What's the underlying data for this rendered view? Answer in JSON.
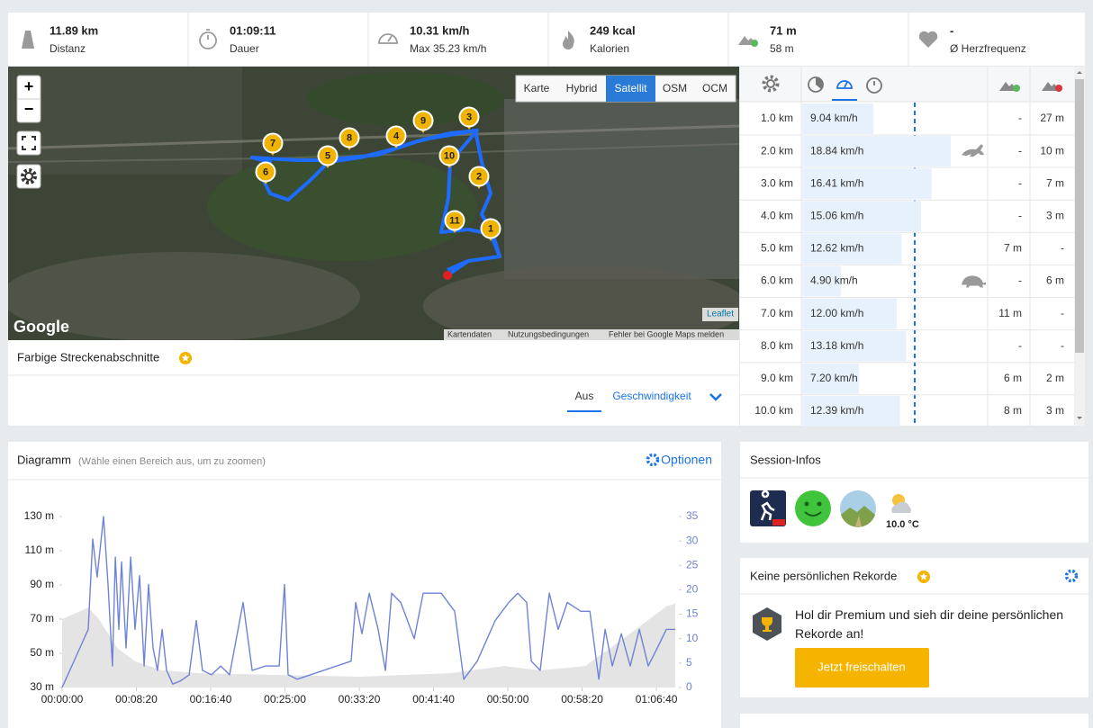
{
  "stats": [
    {
      "value": "11.89 km",
      "label": "Distanz"
    },
    {
      "value": "01:09:11",
      "label": "Dauer"
    },
    {
      "value": "10.31 km/h",
      "label": "Max 35.23 km/h"
    },
    {
      "value": "249 kcal",
      "label": "Kalorien"
    },
    {
      "value": "71 m",
      "label": "58 m"
    },
    {
      "value": "-",
      "label": "Ø Herzfrequenz"
    }
  ],
  "map": {
    "zoom_in": "+",
    "zoom_out": "−",
    "layers": [
      "Karte",
      "Hybrid",
      "Satellit",
      "OSM",
      "OCM"
    ],
    "active_layer": 2,
    "markers": [
      "1",
      "2",
      "3",
      "4",
      "5",
      "6",
      "7",
      "8",
      "9",
      "10",
      "11"
    ],
    "logo": "Google",
    "attribution": [
      "Kartendaten",
      "Nutzungsbedingungen",
      "Fehler bei Google Maps melden"
    ],
    "leaflet": "Leaflet"
  },
  "segments": {
    "title": "Farbige Streckenabschnitte",
    "tabs": [
      "Aus",
      "Geschwindigkeit"
    ],
    "active_tab": 0
  },
  "splits": {
    "distance": [
      "1.0 km",
      "2.0 km",
      "3.0 km",
      "4.0 km",
      "5.0 km",
      "6.0 km",
      "7.0 km",
      "8.0 km",
      "9.0 km",
      "10.0 km"
    ],
    "speed": [
      9.04,
      18.84,
      16.41,
      15.06,
      12.62,
      4.9,
      12.0,
      13.18,
      7.2,
      12.39
    ],
    "speed_labels": [
      "9.04 km/h",
      "18.84 km/h",
      "16.41 km/h",
      "15.06 km/h",
      "12.62 km/h",
      "4.90 km/h",
      "12.00 km/h",
      "13.18 km/h",
      "7.20 km/h",
      "12.39 km/h"
    ],
    "up": [
      "-",
      "-",
      "-",
      "-",
      "7 m",
      "-",
      "11 m",
      "-",
      "6 m",
      "8 m"
    ],
    "down": [
      "27 m",
      "10 m",
      "7 m",
      "3 m",
      "-",
      "6 m",
      "-",
      "-",
      "2 m",
      "3 m"
    ]
  },
  "chart_data": {
    "type": "line",
    "title": "Diagramm",
    "subtitle": "(Wähle einen Bereich aus, um zu zoomen)",
    "options": "Optionen",
    "xlim": [
      0,
      4151
    ],
    "xticks": [
      {
        "value": 0,
        "label": "00:00:00"
      },
      {
        "value": 500,
        "label": "00:08:20"
      },
      {
        "value": 1000,
        "label": "00:16:40"
      },
      {
        "value": 1500,
        "label": "00:25:00"
      },
      {
        "value": 2000,
        "label": "00:33:20"
      },
      {
        "value": 2500,
        "label": "00:41:40"
      },
      {
        "value": 3000,
        "label": "00:50:00"
      },
      {
        "value": 3500,
        "label": "00:58:20"
      },
      {
        "value": 4000,
        "label": "01:06:40"
      }
    ],
    "ylim": [
      30,
      130
    ],
    "yticks": [
      {
        "value": 30,
        "label": "30 m"
      },
      {
        "value": 50,
        "label": "50 m"
      },
      {
        "value": 70,
        "label": "70 m"
      },
      {
        "value": 90,
        "label": "90 m"
      },
      {
        "value": 110,
        "label": "110 m"
      },
      {
        "value": 130,
        "label": "130 m"
      }
    ],
    "y2lim": [
      0,
      35
    ],
    "y2ticks": [
      0,
      5,
      10,
      15,
      20,
      25,
      30,
      35
    ],
    "series": [
      {
        "color": "#e4e4e4",
        "axis": "y",
        "style": "area",
        "x": [
          0,
          176,
          248,
          370,
          491,
          673,
          915,
          1400,
          2006,
          2612,
          2976,
          3218,
          3521,
          3824,
          3945,
          4067,
          4127
        ],
        "values": [
          70,
          76.8,
          70,
          53.2,
          45.3,
          40,
          38.4,
          37.4,
          36.3,
          38.4,
          42.6,
          40,
          42.6,
          61.6,
          69.5,
          77.4,
          79
        ]
      },
      {
        "color": "#6f82d6",
        "axis": "y2",
        "style": "line",
        "x": [
          0,
          176,
          206,
          236,
          279,
          309,
          339,
          358,
          382,
          400,
          430,
          461,
          491,
          521,
          552,
          582,
          612,
          642,
          673,
          703,
          745,
          794,
          855,
          903,
          945,
          1006,
          1067,
          1127,
          1218,
          1279,
          1370,
          1461,
          1497,
          1521,
          1582,
          1945,
          1976,
          2018,
          2067,
          2127,
          2176,
          2218,
          2279,
          2370,
          2430,
          2552,
          2642,
          2703,
          2794,
          2915,
          3006,
          3067,
          3127,
          3158,
          3218,
          3279,
          3339,
          3400,
          3491,
          3552,
          3612,
          3655,
          3703,
          3764,
          3824,
          3885,
          3945,
          4006,
          4067,
          4127
        ],
        "values": [
          0,
          11.9,
          30.4,
          22.6,
          35,
          21.1,
          4.4,
          26.7,
          11.9,
          25.7,
          8.1,
          26.7,
          11.9,
          22.9,
          4.4,
          21.1,
          8.1,
          3.5,
          11.9,
          3.5,
          0.7,
          1.3,
          2.6,
          13.7,
          3.5,
          2.6,
          4.4,
          2.6,
          17.4,
          3.5,
          4.4,
          4.4,
          21.1,
          2.6,
          1.7,
          5.4,
          17.4,
          11,
          19.3,
          11.9,
          3.5,
          19.3,
          17.4,
          10,
          19.3,
          19.3,
          15.6,
          1.7,
          5.4,
          13.7,
          17.4,
          19.3,
          17.4,
          5.4,
          3.5,
          19.3,
          11.9,
          17.4,
          15.6,
          15.6,
          1.7,
          11.9,
          4.4,
          11,
          4.4,
          11.9,
          4.4,
          8.1,
          11.9,
          11.9
        ]
      }
    ]
  },
  "session": {
    "title": "Session-Infos",
    "temperature": "10.0 °C"
  },
  "records": {
    "title": "Keine persönlichen Rekorde",
    "text": "Hol dir Premium und sieh dir deine persönlichen Rekorde an!",
    "button": "Jetzt freischalten"
  }
}
